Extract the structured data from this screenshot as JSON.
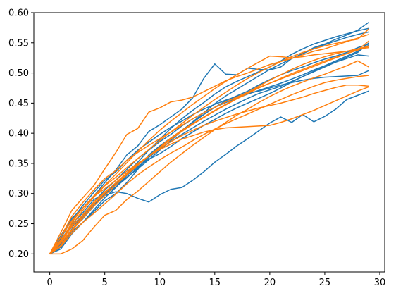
{
  "chart_data": {
    "type": "line",
    "xlim": [
      -1.45,
      30.45
    ],
    "ylim": [
      0.17,
      0.6
    ],
    "xticks": [
      0,
      5,
      10,
      15,
      20,
      25,
      30
    ],
    "xtick_labels": [
      "0",
      "5",
      "10",
      "15",
      "20",
      "25",
      "30"
    ],
    "yticks": [
      0.2,
      0.25,
      0.3,
      0.35,
      0.4,
      0.45,
      0.5,
      0.55,
      0.6
    ],
    "ytick_labels": [
      "0.20",
      "0.25",
      "0.30",
      "0.35",
      "0.40",
      "0.45",
      "0.50",
      "0.55",
      "0.60"
    ],
    "grid": false,
    "x": [
      0,
      1,
      2,
      3,
      4,
      5,
      6,
      7,
      8,
      9,
      10,
      11,
      12,
      13,
      14,
      15,
      16,
      17,
      18,
      19,
      20,
      21,
      22,
      23,
      24,
      25,
      26,
      27,
      28,
      29
    ],
    "series": [
      {
        "color": "#1f77b4",
        "values": [
          0.2,
          0.222,
          0.25,
          0.268,
          0.29,
          0.3,
          0.314,
          0.327,
          0.341,
          0.356,
          0.372,
          0.388,
          0.404,
          0.419,
          0.434,
          0.449,
          0.462,
          0.473,
          0.484,
          0.495,
          0.506,
          0.515,
          0.524,
          0.532,
          0.54,
          0.547,
          0.553,
          0.559,
          0.564,
          0.568
        ]
      },
      {
        "color": "#1f77b4",
        "values": [
          0.2,
          0.215,
          0.239,
          0.26,
          0.282,
          0.297,
          0.303,
          0.3,
          0.292,
          0.286,
          0.298,
          0.307,
          0.31,
          0.322,
          0.336,
          0.352,
          0.365,
          0.379,
          0.391,
          0.404,
          0.417,
          0.427,
          0.418,
          0.431,
          0.419,
          0.428,
          0.44,
          0.456,
          0.463,
          0.47
        ]
      },
      {
        "color": "#1f77b4",
        "values": [
          0.2,
          0.23,
          0.259,
          0.276,
          0.296,
          0.318,
          0.339,
          0.364,
          0.379,
          0.403,
          0.414,
          0.427,
          0.44,
          0.459,
          0.491,
          0.515,
          0.498,
          0.497,
          0.508,
          0.506,
          0.505,
          0.51,
          0.524,
          0.532,
          0.542,
          0.548,
          0.556,
          0.563,
          0.571,
          0.584
        ]
      },
      {
        "color": "#1f77b4",
        "values": [
          0.2,
          0.211,
          0.237,
          0.252,
          0.27,
          0.288,
          0.3,
          0.318,
          0.34,
          0.364,
          0.379,
          0.392,
          0.405,
          0.418,
          0.431,
          0.443,
          0.454,
          0.462,
          0.47,
          0.48,
          0.489,
          0.497,
          0.504,
          0.51,
          0.517,
          0.523,
          0.528,
          0.534,
          0.542,
          0.548
        ]
      },
      {
        "color": "#1f77b4",
        "values": [
          0.2,
          0.219,
          0.247,
          0.264,
          0.282,
          0.302,
          0.316,
          0.334,
          0.352,
          0.372,
          0.39,
          0.408,
          0.424,
          0.438,
          0.451,
          0.465,
          0.477,
          0.486,
          0.494,
          0.502,
          0.51,
          0.52,
          0.531,
          0.54,
          0.548,
          0.554,
          0.56,
          0.565,
          0.57,
          0.574
        ]
      },
      {
        "color": "#1f77b4",
        "values": [
          0.2,
          0.226,
          0.256,
          0.28,
          0.302,
          0.322,
          0.336,
          0.355,
          0.372,
          0.385,
          0.398,
          0.41,
          0.42,
          0.431,
          0.44,
          0.448,
          0.455,
          0.461,
          0.466,
          0.47,
          0.475,
          0.48,
          0.484,
          0.488,
          0.491,
          0.493,
          0.494,
          0.495,
          0.496,
          0.504
        ]
      },
      {
        "color": "#1f77b4",
        "values": [
          0.2,
          0.208,
          0.233,
          0.252,
          0.273,
          0.293,
          0.31,
          0.33,
          0.345,
          0.357,
          0.366,
          0.378,
          0.391,
          0.402,
          0.413,
          0.423,
          0.433,
          0.442,
          0.45,
          0.458,
          0.466,
          0.475,
          0.485,
          0.494,
          0.503,
          0.512,
          0.52,
          0.528,
          0.536,
          0.546
        ]
      },
      {
        "color": "#1f77b4",
        "values": [
          0.2,
          0.224,
          0.244,
          0.262,
          0.286,
          0.306,
          0.322,
          0.34,
          0.358,
          0.372,
          0.386,
          0.398,
          0.412,
          0.424,
          0.434,
          0.443,
          0.451,
          0.458,
          0.465,
          0.471,
          0.477,
          0.483,
          0.49,
          0.497,
          0.505,
          0.512,
          0.518,
          0.524,
          0.53,
          0.528
        ]
      },
      {
        "color": "#1f77b4",
        "values": [
          0.2,
          0.216,
          0.241,
          0.258,
          0.279,
          0.299,
          0.311,
          0.326,
          0.343,
          0.36,
          0.374,
          0.386,
          0.398,
          0.409,
          0.42,
          0.43,
          0.44,
          0.449,
          0.458,
          0.466,
          0.472,
          0.478,
          0.486,
          0.494,
          0.502,
          0.51,
          0.518,
          0.526,
          0.534,
          0.55
        ]
      },
      {
        "color": "#ff7f0e",
        "values": [
          0.2,
          0.235,
          0.272,
          0.293,
          0.313,
          0.341,
          0.368,
          0.398,
          0.408,
          0.435,
          0.442,
          0.452,
          0.455,
          0.46,
          0.469,
          0.478,
          0.487,
          0.494,
          0.5,
          0.507,
          0.514,
          0.519,
          0.524,
          0.53,
          0.536,
          0.54,
          0.546,
          0.552,
          0.558,
          0.564
        ]
      },
      {
        "color": "#ff7f0e",
        "values": [
          0.2,
          0.22,
          0.252,
          0.276,
          0.295,
          0.308,
          0.322,
          0.337,
          0.35,
          0.362,
          0.373,
          0.382,
          0.39,
          0.396,
          0.402,
          0.406,
          0.409,
          0.41,
          0.411,
          0.412,
          0.413,
          0.418,
          0.424,
          0.431,
          0.438,
          0.446,
          0.454,
          0.462,
          0.47,
          0.477
        ]
      },
      {
        "color": "#ff7f0e",
        "values": [
          0.2,
          0.2,
          0.208,
          0.222,
          0.244,
          0.264,
          0.272,
          0.29,
          0.304,
          0.32,
          0.336,
          0.352,
          0.366,
          0.38,
          0.393,
          0.406,
          0.418,
          0.43,
          0.44,
          0.451,
          0.461,
          0.47,
          0.478,
          0.485,
          0.492,
          0.498,
          0.505,
          0.512,
          0.52,
          0.51
        ]
      },
      {
        "color": "#ff7f0e",
        "values": [
          0.2,
          0.228,
          0.262,
          0.285,
          0.306,
          0.325,
          0.338,
          0.355,
          0.368,
          0.38,
          0.391,
          0.402,
          0.413,
          0.424,
          0.434,
          0.443,
          0.452,
          0.46,
          0.468,
          0.476,
          0.483,
          0.49,
          0.497,
          0.504,
          0.511,
          0.518,
          0.525,
          0.532,
          0.54,
          0.542
        ]
      },
      {
        "color": "#ff7f0e",
        "values": [
          0.2,
          0.212,
          0.234,
          0.252,
          0.267,
          0.283,
          0.299,
          0.316,
          0.331,
          0.344,
          0.356,
          0.367,
          0.377,
          0.388,
          0.398,
          0.407,
          0.416,
          0.424,
          0.432,
          0.44,
          0.448,
          0.456,
          0.464,
          0.471,
          0.478,
          0.484,
          0.488,
          0.491,
          0.494,
          0.496
        ]
      },
      {
        "color": "#ff7f0e",
        "values": [
          0.2,
          0.22,
          0.245,
          0.265,
          0.286,
          0.303,
          0.317,
          0.333,
          0.348,
          0.362,
          0.377,
          0.392,
          0.405,
          0.416,
          0.427,
          0.438,
          0.448,
          0.458,
          0.468,
          0.478,
          0.488,
          0.497,
          0.506,
          0.514,
          0.521,
          0.527,
          0.532,
          0.536,
          0.54,
          0.544
        ]
      },
      {
        "color": "#ff7f0e",
        "values": [
          0.2,
          0.218,
          0.24,
          0.262,
          0.283,
          0.301,
          0.318,
          0.334,
          0.349,
          0.362,
          0.375,
          0.386,
          0.396,
          0.405,
          0.413,
          0.42,
          0.426,
          0.432,
          0.437,
          0.442,
          0.446,
          0.45,
          0.455,
          0.46,
          0.466,
          0.471,
          0.476,
          0.48,
          0.48,
          0.478
        ]
      },
      {
        "color": "#ff7f0e",
        "values": [
          0.2,
          0.228,
          0.255,
          0.276,
          0.296,
          0.314,
          0.332,
          0.351,
          0.37,
          0.388,
          0.405,
          0.42,
          0.434,
          0.448,
          0.461,
          0.474,
          0.486,
          0.497,
          0.508,
          0.518,
          0.528,
          0.527,
          0.525,
          0.527,
          0.53,
          0.532,
          0.534,
          0.536,
          0.538,
          0.545
        ]
      },
      {
        "color": "#ff7f0e",
        "values": [
          0.2,
          0.214,
          0.238,
          0.259,
          0.279,
          0.297,
          0.314,
          0.331,
          0.347,
          0.362,
          0.376,
          0.39,
          0.403,
          0.415,
          0.426,
          0.437,
          0.447,
          0.457,
          0.466,
          0.475,
          0.483,
          0.491,
          0.499,
          0.506,
          0.513,
          0.52,
          0.526,
          0.532,
          0.538,
          0.553
        ]
      },
      {
        "color": "#ff7f0e",
        "values": [
          0.2,
          0.223,
          0.248,
          0.272,
          0.294,
          0.313,
          0.327,
          0.343,
          0.358,
          0.373,
          0.388,
          0.402,
          0.416,
          0.43,
          0.443,
          0.456,
          0.468,
          0.48,
          0.491,
          0.501,
          0.51,
          0.519,
          0.527,
          0.534,
          0.54,
          0.545,
          0.549,
          0.553,
          0.556,
          0.573
        ]
      }
    ]
  }
}
